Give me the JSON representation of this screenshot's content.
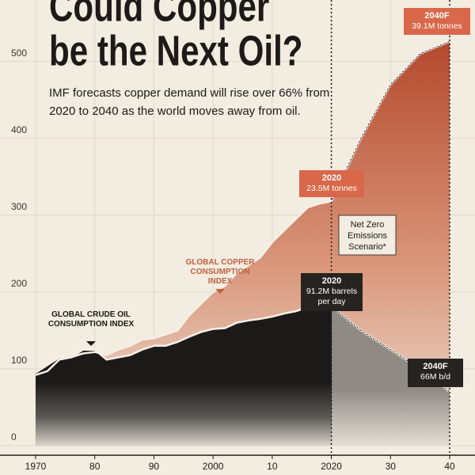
{
  "chart_data": {
    "type": "area",
    "title": [
      "Could Copper",
      "be the Next Oil?"
    ],
    "subtitle": [
      "IMF forecasts copper demand will rise over 66% from",
      "2020 to 2040 as the world moves away from oil."
    ],
    "x": [
      1970,
      1972,
      1974,
      1976,
      1978,
      1980,
      1982,
      1984,
      1986,
      1988,
      1990,
      1992,
      1994,
      1996,
      1998,
      2000,
      2002,
      2004,
      2006,
      2008,
      2010,
      2012,
      2014,
      2016,
      2018,
      2020,
      2025,
      2030,
      2035,
      2040
    ],
    "series": [
      {
        "name": "GLOBAL COPPER CONSUMPTION INDEX",
        "color": "#c0603f",
        "values": [
          92,
          97,
          112,
          115,
          120,
          122,
          118,
          125,
          130,
          138,
          140,
          145,
          150,
          170,
          185,
          200,
          208,
          225,
          235,
          245,
          265,
          280,
          295,
          310,
          315,
          318,
          400,
          470,
          510,
          526
        ]
      },
      {
        "name": "GLOBAL CRUDE OIL CONSUMPTION INDEX",
        "color": "#1f1c1a",
        "values": [
          95,
          105,
          115,
          115,
          125,
          125,
          112,
          115,
          118,
          125,
          130,
          130,
          135,
          142,
          148,
          152,
          153,
          160,
          163,
          165,
          168,
          172,
          175,
          180,
          183,
          182,
          150,
          125,
          100,
          70
        ]
      }
    ],
    "annotations": {
      "copper_2020": [
        "2020",
        "23.5M tonnes"
      ],
      "copper_2040": [
        "2040F",
        "39.1M tonnes"
      ],
      "scenario": [
        "Net Zero",
        "Emissions",
        "Scenario*"
      ],
      "oil_2020": [
        "2020",
        "91.2M barrels",
        "per day"
      ],
      "oil_2040": [
        "2040F",
        "66M b/d"
      ]
    },
    "vlines": [
      2020,
      2040
    ],
    "xlim": [
      1970,
      2040
    ],
    "xticks": [
      1970,
      {
        "value": 1980,
        "label": "80"
      },
      {
        "value": 1990,
        "label": "90"
      },
      2000,
      {
        "value": 2010,
        "label": "10"
      },
      2020,
      {
        "value": 2030,
        "label": "30"
      },
      {
        "value": 2040,
        "label": "40"
      }
    ],
    "ylim": [
      0,
      580
    ],
    "yticks": [
      0,
      100,
      200,
      300,
      400,
      500
    ],
    "grid": true
  }
}
